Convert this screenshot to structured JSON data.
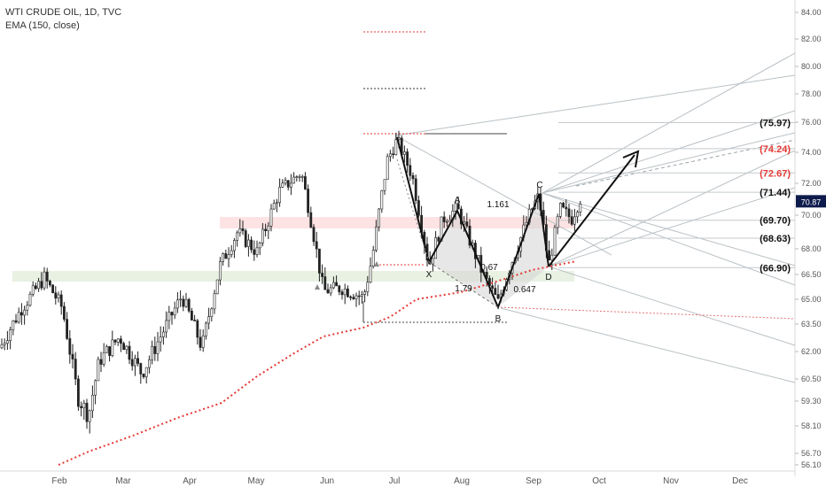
{
  "header": {
    "symbol": "WTI CRUDE OIL, 1D, TVC",
    "indicator": "EMA (150, close)"
  },
  "chart_data": {
    "type": "candlestick",
    "x_tick_labels": [
      "Feb",
      "Mar",
      "Apr",
      "May",
      "Jun",
      "Jul",
      "Aug",
      "Sep",
      "Oct",
      "Nov",
      "Dec"
    ],
    "y_tick_labels": [
      "84.00",
      "82.00",
      "80.00",
      "78.00",
      "76.00",
      "74.00",
      "72.00",
      "70.00",
      "68.00",
      "66.50",
      "65.00",
      "63.50",
      "62.00",
      "60.50",
      "59.30",
      "58.10",
      "56.70",
      "56.10"
    ],
    "last_price": "70.87",
    "target_levels": [
      {
        "label": "(75.97)",
        "price": 75.97,
        "color": "#111111"
      },
      {
        "label": "(74.24)",
        "price": 74.24,
        "color": "#e53935"
      },
      {
        "label": "(72.67)",
        "price": 72.67,
        "color": "#e53935"
      },
      {
        "label": "(71.44)",
        "price": 71.44,
        "color": "#111111"
      },
      {
        "label": "(69.70)",
        "price": 69.7,
        "color": "#111111"
      },
      {
        "label": "(68.63)",
        "price": 68.63,
        "color": "#111111"
      },
      {
        "label": "(66.90)",
        "price": 66.9,
        "color": "#111111"
      }
    ],
    "pattern_points": [
      {
        "label": "X",
        "price": 66.9
      },
      {
        "label": "A",
        "price": 70.4
      },
      {
        "label": "B",
        "price": 64.6
      },
      {
        "label": "C",
        "price": 71.3
      },
      {
        "label": "D",
        "price": 66.9
      }
    ],
    "ratios": [
      "1.161",
      "1.79",
      "0.647",
      "0.67"
    ],
    "colors": {
      "ema": "#e53935",
      "candle": "#222222",
      "resistance_zone": "#fde3e3",
      "support_zone": "#e8f1e2",
      "price_badge": "#0d1b4c"
    }
  }
}
